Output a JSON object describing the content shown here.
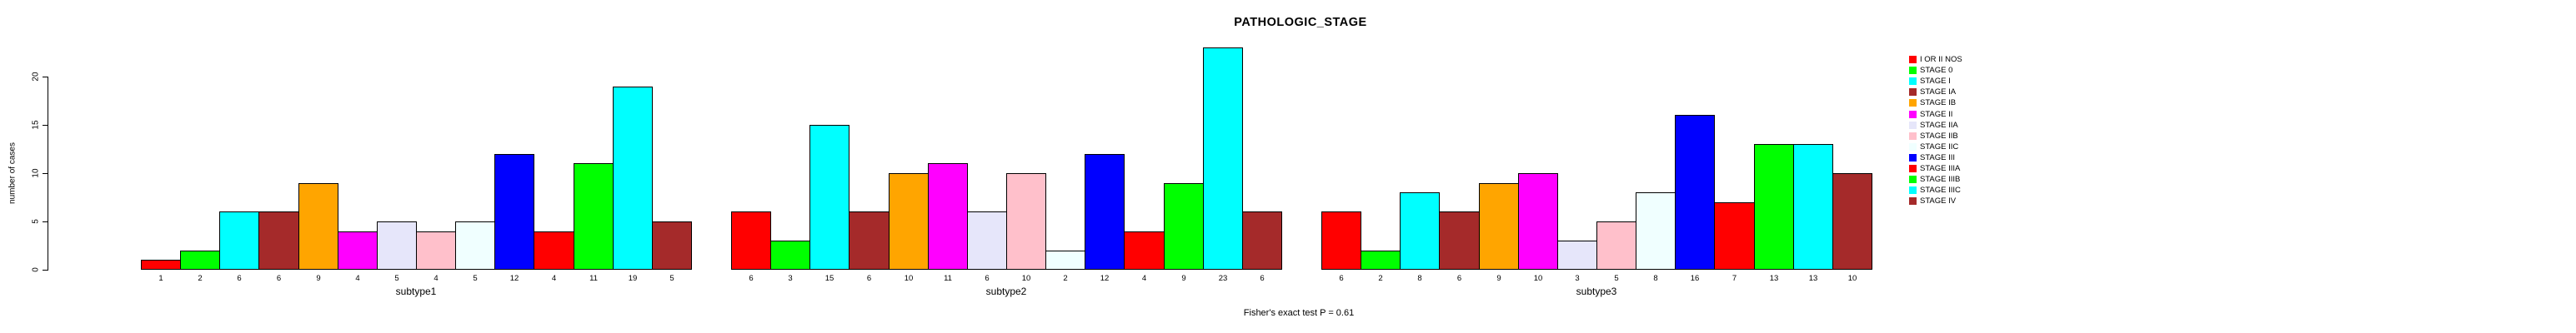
{
  "title": "PATHOLOGIC_STAGE",
  "footer": "Fisher's exact test P = 0.61",
  "y_axis": {
    "label": "number of cases",
    "ticks": [
      0,
      5,
      10,
      15,
      20
    ]
  },
  "legend": {
    "position": "right",
    "items": [
      {
        "label": "I OR II NOS",
        "color": "#FF0000"
      },
      {
        "label": "STAGE 0",
        "color": "#00FF00"
      },
      {
        "label": "STAGE I",
        "color": "#00FFFF"
      },
      {
        "label": "STAGE IA",
        "color": "#A52A2A"
      },
      {
        "label": "STAGE IB",
        "color": "#FFA500"
      },
      {
        "label": "STAGE II",
        "color": "#FF00FF"
      },
      {
        "label": "STAGE IIA",
        "color": "#E6E6FA"
      },
      {
        "label": "STAGE IIB",
        "color": "#FFC0CB"
      },
      {
        "label": "STAGE IIC",
        "color": "#F0FFFF"
      },
      {
        "label": "STAGE III",
        "color": "#0000FF"
      },
      {
        "label": "STAGE IIIA",
        "color": "#FF0000"
      },
      {
        "label": "STAGE IIIB",
        "color": "#00FF00"
      },
      {
        "label": "STAGE IIIC",
        "color": "#00FFFF"
      },
      {
        "label": "STAGE IV",
        "color": "#A52A2A"
      }
    ]
  },
  "chart_data": {
    "type": "bar",
    "title": "PATHOLOGIC_STAGE",
    "xlabel": "",
    "ylabel": "number of cases",
    "ylim": [
      0,
      20
    ],
    "yticks": [
      0,
      5,
      10,
      15,
      20
    ],
    "grid": false,
    "legend_position": "right",
    "bar_border_color": "#000000",
    "annotation": "Fisher's exact test P = 0.61",
    "stages": [
      "I OR II NOS",
      "STAGE 0",
      "STAGE I",
      "STAGE IA",
      "STAGE IB",
      "STAGE II",
      "STAGE IIA",
      "STAGE IIB",
      "STAGE IIC",
      "STAGE III",
      "STAGE IIIA",
      "STAGE IIIB",
      "STAGE IIIC",
      "STAGE IV"
    ],
    "colors": [
      "#FF0000",
      "#00FF00",
      "#00FFFF",
      "#A52A2A",
      "#FFA500",
      "#FF00FF",
      "#E6E6FA",
      "#FFC0CB",
      "#F0FFFF",
      "#0000FF",
      "#FF0000",
      "#00FF00",
      "#00FFFF",
      "#A52A2A"
    ],
    "groups": [
      {
        "label": "subtype1",
        "values": [
          1,
          2,
          6,
          6,
          9,
          4,
          5,
          4,
          5,
          12,
          4,
          11,
          19,
          5
        ]
      },
      {
        "label": "subtype2",
        "values": [
          6,
          3,
          15,
          6,
          10,
          11,
          6,
          10,
          2,
          12,
          4,
          9,
          23,
          6
        ]
      },
      {
        "label": "subtype3",
        "values": [
          6,
          2,
          8,
          6,
          9,
          10,
          3,
          5,
          8,
          16,
          7,
          13,
          13,
          10
        ]
      }
    ],
    "bar_value_labels_shown": true
  }
}
